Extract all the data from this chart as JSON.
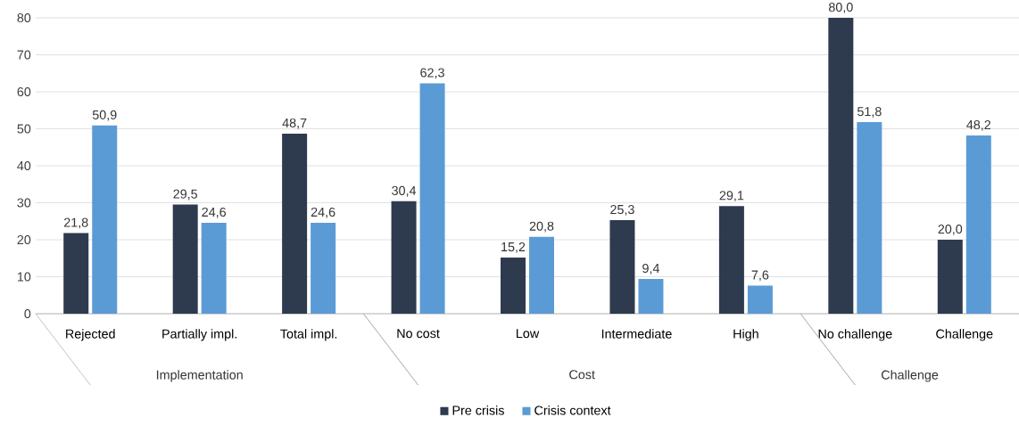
{
  "chart_data": {
    "type": "bar",
    "categories": [
      "Rejected",
      "Partially impl.",
      "Total impl.",
      "No cost",
      "Low",
      "Intermediate",
      "High",
      "No challenge",
      "Challenge"
    ],
    "series": [
      {
        "name": "Pre crisis",
        "color": "#2e3a4e",
        "values": [
          21.8,
          29.5,
          48.7,
          30.4,
          15.2,
          25.3,
          29.1,
          80.0,
          20.0
        ],
        "value_labels": [
          "21,8",
          "29,5",
          "48,7",
          "30,4",
          "15,2",
          "25,3",
          "29,1",
          "80,0",
          "20,0"
        ]
      },
      {
        "name": "Crisis context",
        "color": "#5b9bd5",
        "values": [
          50.9,
          24.6,
          24.6,
          62.3,
          20.8,
          9.4,
          7.6,
          51.8,
          48.2
        ],
        "value_labels": [
          "50,9",
          "24,6",
          "24,6",
          "62,3",
          "20,8",
          "9,4",
          "7,6",
          "51,8",
          "48,2"
        ]
      }
    ],
    "annotations": [
      "Implementation",
      "Cost",
      "Challenge"
    ],
    "ylim": [
      0,
      80
    ],
    "yticks": [
      0,
      10,
      20,
      30,
      40,
      50,
      60,
      70,
      80
    ],
    "grid": "y",
    "legend": "bottom"
  }
}
